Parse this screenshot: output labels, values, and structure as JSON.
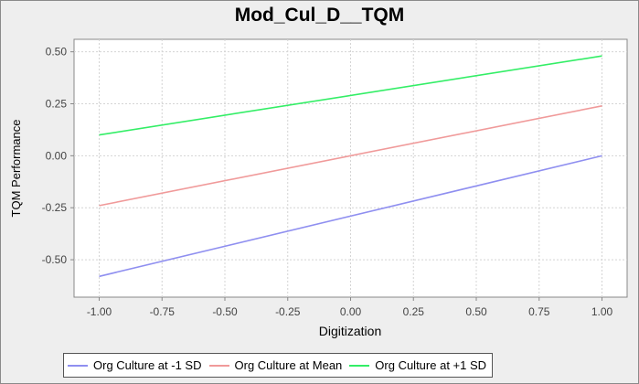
{
  "chart_data": {
    "type": "line",
    "title": "Mod_Cul_D__TQM",
    "xlabel": "Digitization",
    "ylabel": "TQM Performance",
    "xlim": [
      -1.1,
      1.1
    ],
    "ylim": [
      -0.68,
      0.56
    ],
    "x_ticks": [
      -1.0,
      -0.75,
      -0.5,
      -0.25,
      0.0,
      0.25,
      0.5,
      0.75,
      1.0
    ],
    "x_tick_labels": [
      "-1.00",
      "-0.75",
      "-0.50",
      "-0.25",
      "0.00",
      "0.25",
      "0.50",
      "0.75",
      "1.00"
    ],
    "y_ticks": [
      -0.5,
      -0.25,
      0.0,
      0.25,
      0.5
    ],
    "y_tick_labels": [
      "-0.50",
      "-0.25",
      "0.00",
      "0.25",
      "0.50"
    ],
    "grid": true,
    "legend_position": "bottom",
    "series": [
      {
        "name": "Org Culture at -1 SD",
        "color": "#8f8ff0",
        "x": [
          -1.0,
          1.0
        ],
        "y": [
          -0.58,
          0.0
        ]
      },
      {
        "name": "Org Culture at Mean",
        "color": "#f09a9a",
        "x": [
          -1.0,
          1.0
        ],
        "y": [
          -0.24,
          0.24
        ]
      },
      {
        "name": "Org Culture at +1 SD",
        "color": "#33ee66",
        "x": [
          -1.0,
          1.0
        ],
        "y": [
          0.1,
          0.48
        ]
      }
    ]
  }
}
